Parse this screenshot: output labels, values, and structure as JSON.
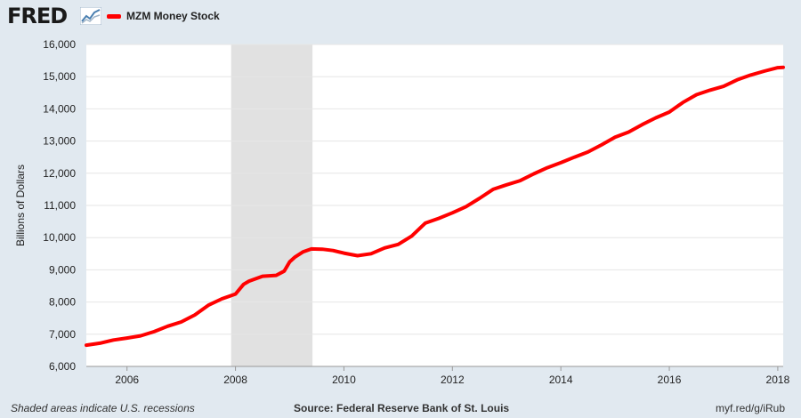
{
  "header": {
    "logo": "FRED",
    "logo_icon": "line-chart-icon"
  },
  "colors": {
    "series": "#ff0000",
    "recession": "#e1e1e1",
    "background": "#e1e9f0",
    "plot": "#ffffff"
  },
  "chart_data": {
    "type": "line",
    "title": "",
    "xlabel": "",
    "ylabel": "Billions of Dollars",
    "xlim": [
      2005.25,
      2018.1
    ],
    "ylim": [
      6000,
      16000
    ],
    "x_ticks": [
      2006,
      2008,
      2010,
      2012,
      2014,
      2016,
      2018
    ],
    "x_tick_labels": [
      "2006",
      "2008",
      "2010",
      "2012",
      "2014",
      "2016",
      "2018"
    ],
    "y_ticks": [
      6000,
      7000,
      8000,
      9000,
      10000,
      11000,
      12000,
      13000,
      14000,
      15000,
      16000
    ],
    "y_tick_labels": [
      "6,000",
      "7,000",
      "8,000",
      "9,000",
      "10,000",
      "11,000",
      "12,000",
      "13,000",
      "14,000",
      "15,000",
      "16,000"
    ],
    "grid": "horizontal",
    "legend_position": "top-left",
    "recessions": [
      {
        "start": 2007.92,
        "end": 2009.42
      }
    ],
    "series": [
      {
        "name": "MZM Money Stock",
        "x": [
          2005.25,
          2005.5,
          2005.75,
          2006.0,
          2006.25,
          2006.5,
          2006.75,
          2007.0,
          2007.25,
          2007.5,
          2007.75,
          2008.0,
          2008.15,
          2008.25,
          2008.5,
          2008.75,
          2008.9,
          2009.0,
          2009.1,
          2009.25,
          2009.4,
          2009.6,
          2009.8,
          2010.0,
          2010.15,
          2010.25,
          2010.5,
          2010.75,
          2011.0,
          2011.25,
          2011.5,
          2011.75,
          2012.0,
          2012.25,
          2012.5,
          2012.75,
          2013.0,
          2013.25,
          2013.5,
          2013.75,
          2014.0,
          2014.25,
          2014.5,
          2014.75,
          2015.0,
          2015.25,
          2015.5,
          2015.75,
          2016.0,
          2016.25,
          2016.5,
          2016.75,
          2017.0,
          2017.25,
          2017.5,
          2017.75,
          2018.0,
          2018.1
        ],
        "y": [
          6660,
          6720,
          6820,
          6880,
          6950,
          7080,
          7250,
          7380,
          7600,
          7900,
          8100,
          8250,
          8550,
          8650,
          8800,
          8830,
          8960,
          9250,
          9400,
          9560,
          9650,
          9640,
          9600,
          9520,
          9470,
          9440,
          9500,
          9680,
          9790,
          10050,
          10450,
          10600,
          10770,
          10960,
          11220,
          11500,
          11640,
          11770,
          11980,
          12170,
          12330,
          12500,
          12660,
          12880,
          13120,
          13280,
          13510,
          13720,
          13900,
          14200,
          14440,
          14580,
          14700,
          14900,
          15050,
          15170,
          15280,
          15290
        ]
      }
    ]
  },
  "footer": {
    "note": "Shaded areas indicate U.S. recessions",
    "source": "Source: Federal Reserve Bank of St. Louis",
    "link": "myf.red/g/iRub"
  }
}
